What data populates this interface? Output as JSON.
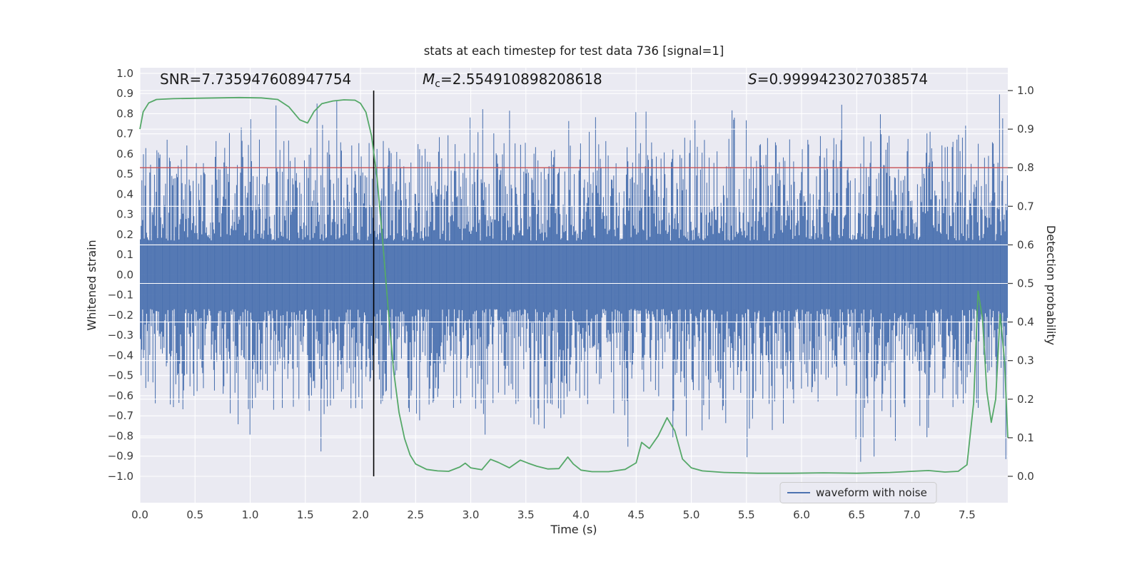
{
  "figure": {
    "background": "#ffffff",
    "axes_background": "#eaeaf2",
    "grid_color": "#ffffff",
    "legend_border": "#cccccc"
  },
  "chart_data": {
    "type": "line",
    "title": "stats at each timestep for test data 736 [signal=1]",
    "xlabel": "Time (s)",
    "ylabel_left": "Whitened strain",
    "ylabel_right": "Detection probability",
    "xlim": [
      0.0,
      7.87
    ],
    "ylim_left": [
      -1.131,
      1.028
    ],
    "ylim_right": [
      -0.0684,
      1.0592
    ],
    "x_ticks": [
      0.0,
      0.5,
      1.0,
      1.5,
      2.0,
      2.5,
      3.0,
      3.5,
      4.0,
      4.5,
      5.0,
      5.5,
      6.0,
      6.5,
      7.0,
      7.5
    ],
    "x_tick_labels": [
      "0.0",
      "0.5",
      "1.0",
      "1.5",
      "2.0",
      "2.5",
      "3.0",
      "3.5",
      "4.0",
      "4.5",
      "5.0",
      "5.5",
      "6.0",
      "6.5",
      "7.0",
      "7.5"
    ],
    "y_ticks_left": [
      -1.0,
      -0.9,
      -0.8,
      -0.7,
      -0.6,
      -0.5,
      -0.4,
      -0.3,
      -0.2,
      -0.1,
      0.0,
      0.1,
      0.2,
      0.3,
      0.4,
      0.5,
      0.6,
      0.7,
      0.8,
      0.9,
      1.0
    ],
    "y_tick_labels_left": [
      "−1.0",
      "−0.9",
      "−0.8",
      "−0.7",
      "−0.6",
      "−0.5",
      "−0.4",
      "−0.3",
      "−0.2",
      "−0.1",
      "0.0",
      "0.1",
      "0.2",
      "0.3",
      "0.4",
      "0.5",
      "0.6",
      "0.7",
      "0.8",
      "0.9",
      "1.0"
    ],
    "y_ticks_right": [
      0.0,
      0.1,
      0.2,
      0.3,
      0.4,
      0.5,
      0.6,
      0.7,
      0.8,
      0.9,
      1.0
    ],
    "y_tick_labels_right": [
      "0.0",
      "0.1",
      "0.2",
      "0.3",
      "0.4",
      "0.5",
      "0.6",
      "0.7",
      "0.8",
      "0.9",
      "1.0"
    ],
    "annotations": {
      "snr": {
        "text": "SNR=7.735947608947754"
      },
      "chirp_mass": {
        "var": "M",
        "sub": "c",
        "value": "=2.554910898208618"
      },
      "significance": {
        "var": "S",
        "value": "=0.9999423027038574"
      }
    },
    "threshold_line": {
      "axis": "right",
      "value": 0.8,
      "color": "#c44e52"
    },
    "event_marker_line": {
      "x": 2.12,
      "y_span_right": [
        0.0,
        1.0
      ],
      "color": "#000000"
    },
    "series": [
      {
        "name": "waveform with noise",
        "kind": "noise",
        "axis": "left",
        "color": "#4c72b0",
        "noise": {
          "seed": 736,
          "columns": 1100,
          "base": 0.17,
          "a1": 0.5,
          "e1": 2.2,
          "a2": 0.32,
          "e2": 8
        }
      },
      {
        "name": "detection probability",
        "kind": "line",
        "axis": "right",
        "color": "#55a868",
        "points": [
          [
            0.0,
            0.9
          ],
          [
            0.03,
            0.945
          ],
          [
            0.08,
            0.968
          ],
          [
            0.15,
            0.977
          ],
          [
            0.3,
            0.979
          ],
          [
            0.5,
            0.98
          ],
          [
            0.7,
            0.981
          ],
          [
            0.9,
            0.982
          ],
          [
            1.1,
            0.981
          ],
          [
            1.25,
            0.977
          ],
          [
            1.35,
            0.958
          ],
          [
            1.45,
            0.924
          ],
          [
            1.52,
            0.916
          ],
          [
            1.58,
            0.946
          ],
          [
            1.65,
            0.966
          ],
          [
            1.75,
            0.973
          ],
          [
            1.85,
            0.976
          ],
          [
            1.95,
            0.975
          ],
          [
            2.0,
            0.967
          ],
          [
            2.05,
            0.944
          ],
          [
            2.1,
            0.883
          ],
          [
            2.15,
            0.775
          ],
          [
            2.2,
            0.615
          ],
          [
            2.25,
            0.44
          ],
          [
            2.3,
            0.275
          ],
          [
            2.35,
            0.165
          ],
          [
            2.4,
            0.098
          ],
          [
            2.45,
            0.055
          ],
          [
            2.5,
            0.032
          ],
          [
            2.6,
            0.018
          ],
          [
            2.7,
            0.014
          ],
          [
            2.8,
            0.013
          ],
          [
            2.9,
            0.024
          ],
          [
            2.95,
            0.034
          ],
          [
            3.0,
            0.022
          ],
          [
            3.1,
            0.017
          ],
          [
            3.18,
            0.044
          ],
          [
            3.25,
            0.036
          ],
          [
            3.35,
            0.022
          ],
          [
            3.45,
            0.042
          ],
          [
            3.52,
            0.034
          ],
          [
            3.6,
            0.026
          ],
          [
            3.7,
            0.019
          ],
          [
            3.8,
            0.02
          ],
          [
            3.88,
            0.05
          ],
          [
            3.93,
            0.032
          ],
          [
            4.0,
            0.016
          ],
          [
            4.1,
            0.012
          ],
          [
            4.25,
            0.012
          ],
          [
            4.4,
            0.018
          ],
          [
            4.5,
            0.035
          ],
          [
            4.55,
            0.088
          ],
          [
            4.62,
            0.072
          ],
          [
            4.7,
            0.105
          ],
          [
            4.78,
            0.152
          ],
          [
            4.85,
            0.118
          ],
          [
            4.92,
            0.045
          ],
          [
            5.0,
            0.022
          ],
          [
            5.1,
            0.014
          ],
          [
            5.3,
            0.01
          ],
          [
            5.6,
            0.008
          ],
          [
            5.9,
            0.008
          ],
          [
            6.2,
            0.009
          ],
          [
            6.5,
            0.008
          ],
          [
            6.8,
            0.01
          ],
          [
            7.0,
            0.013
          ],
          [
            7.15,
            0.015
          ],
          [
            7.3,
            0.011
          ],
          [
            7.42,
            0.013
          ],
          [
            7.5,
            0.03
          ],
          [
            7.56,
            0.19
          ],
          [
            7.6,
            0.48
          ],
          [
            7.64,
            0.41
          ],
          [
            7.68,
            0.22
          ],
          [
            7.72,
            0.14
          ],
          [
            7.76,
            0.2
          ],
          [
            7.8,
            0.42
          ],
          [
            7.84,
            0.3
          ],
          [
            7.87,
            0.1
          ]
        ]
      }
    ],
    "legend": {
      "location": "lower right",
      "entries": [
        {
          "label": "waveform with noise",
          "color": "#4c72b0"
        }
      ]
    }
  }
}
